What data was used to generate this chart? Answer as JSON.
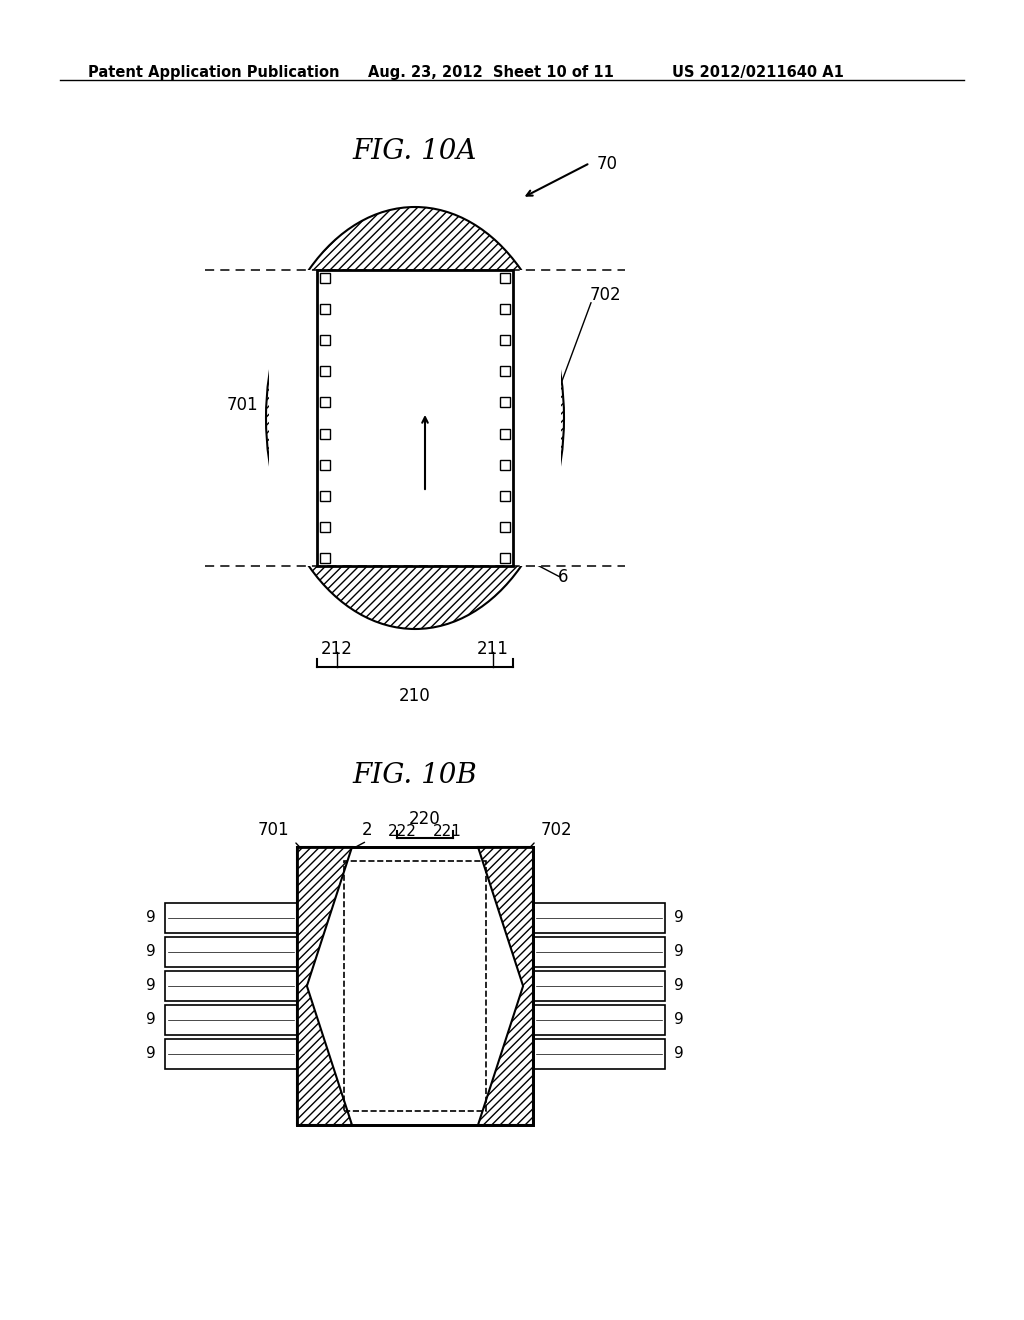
{
  "bg_color": "#ffffff",
  "header_text": "Patent Application Publication",
  "header_date": "Aug. 23, 2012  Sheet 10 of 11",
  "header_patent": "US 2012/0211640 A1",
  "fig10a_title": "FIG. 10A",
  "fig10b_title": "FIG. 10B",
  "label_70": "70",
  "label_701_a": "701",
  "label_702_a": "702",
  "label_6": "6",
  "label_212": "212",
  "label_211": "211",
  "label_210": "210",
  "label_701_b": "701",
  "label_702_b": "702",
  "label_2": "2",
  "label_220": "220",
  "label_222": "222",
  "label_221": "221",
  "label_9": "9"
}
